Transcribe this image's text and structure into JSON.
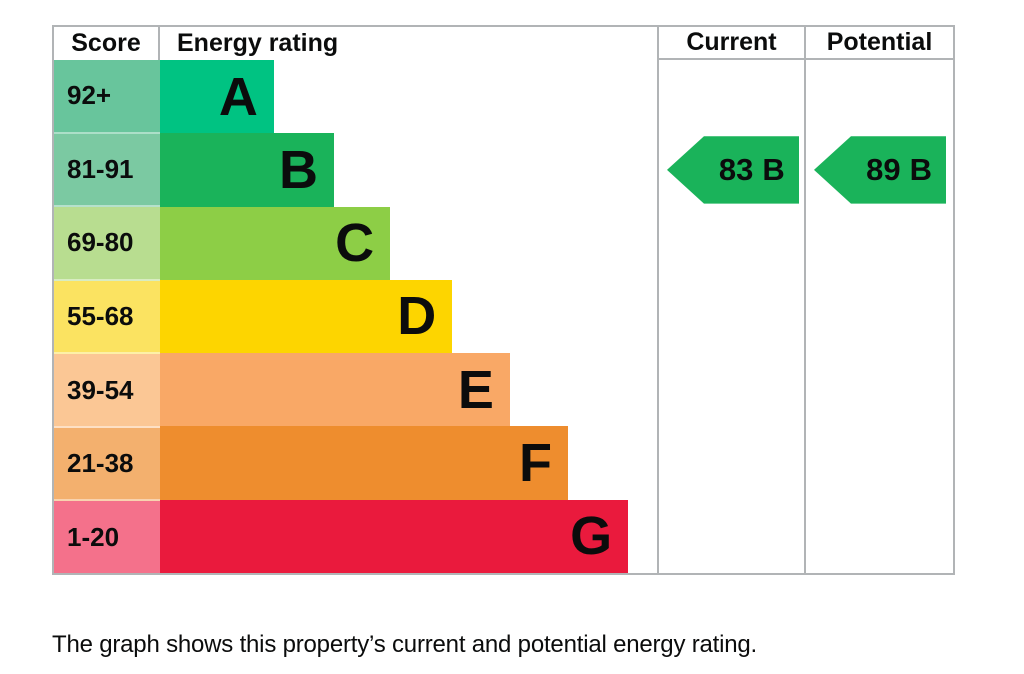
{
  "chart_data": {
    "type": "bar",
    "title": "Energy rating",
    "orientation": "horizontal",
    "categories": [
      "A",
      "B",
      "C",
      "D",
      "E",
      "F",
      "G"
    ],
    "score_ranges": [
      "92+",
      "81-91",
      "69-80",
      "55-68",
      "39-54",
      "21-38",
      "1-20"
    ],
    "bar_width_pct": [
      22.9,
      35.0,
      46.3,
      58.8,
      70.4,
      82.1,
      94.2
    ],
    "current": {
      "score": 83,
      "band": "B"
    },
    "potential": {
      "score": 89,
      "band": "B"
    },
    "grid": false,
    "legend_position": "none"
  },
  "headers": {
    "score": "Score",
    "rating": "Energy rating",
    "current": "Current",
    "potential": "Potential"
  },
  "bands": [
    {
      "score": "92+",
      "letter": "A",
      "bar_color": "#00c382",
      "score_color": "#68c59c",
      "width_pct": 22.9
    },
    {
      "score": "81-91",
      "letter": "B",
      "bar_color": "#1ab35a",
      "score_color": "#7bc9a2",
      "width_pct": 35.0
    },
    {
      "score": "69-80",
      "letter": "C",
      "bar_color": "#8dce46",
      "score_color": "#b8dd90",
      "width_pct": 46.3
    },
    {
      "score": "55-68",
      "letter": "D",
      "bar_color": "#fdd500",
      "score_color": "#fbe361",
      "width_pct": 58.8
    },
    {
      "score": "39-54",
      "letter": "E",
      "bar_color": "#f9a866",
      "score_color": "#fbc795",
      "width_pct": 70.4
    },
    {
      "score": "21-38",
      "letter": "F",
      "bar_color": "#ee8d2e",
      "score_color": "#f3b06e",
      "width_pct": 82.1
    },
    {
      "score": "1-20",
      "letter": "G",
      "bar_color": "#ea1a3d",
      "score_color": "#f4718b",
      "width_pct": 94.2
    }
  ],
  "current": {
    "value": "83",
    "band": "B"
  },
  "potential": {
    "value": "89",
    "band": "B"
  },
  "caption": "The graph shows this property’s current and potential energy rating.",
  "colors": {
    "border": "#b1b4b6",
    "text": "#0b0c0c"
  }
}
